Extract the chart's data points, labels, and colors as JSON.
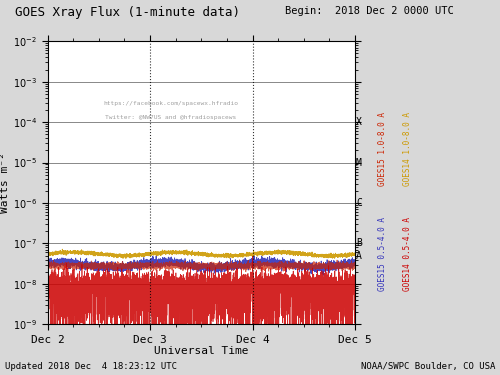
{
  "title_left": "GOES Xray Flux (1-minute data)",
  "title_right": "Begin:  2018 Dec 2 0000 UTC",
  "xlabel": "Universal Time",
  "ylabel": "Watts m⁻²",
  "footer_left": "Updated 2018 Dec  4 18:23:12 UTC",
  "footer_right": "NOAA/SWPC Boulder, CO USA",
  "watermark_line1": "https://facebook.com/spacewx.hfradio",
  "watermark_line2": "Twitter: @NW7US and @hfradiospacews",
  "ylim_low": 1e-09,
  "ylim_high": 0.01,
  "xlim_low": 0,
  "xlim_high": 4320,
  "xtick_positions": [
    0,
    1440,
    2880,
    4320
  ],
  "xtick_labels": [
    "Dec 2",
    "Dec 3",
    "Dec 4",
    "Dec 5"
  ],
  "vline_positions": [
    1440,
    2880
  ],
  "goes15_long_color": "#cc2200",
  "goes14_long_color": "#cc9900",
  "goes15_short_color": "#3333bb",
  "goes14_short_color": "#cc0000",
  "bg_color": "#d8d8d8",
  "plot_bg_color": "#ffffff",
  "grid_color": "#888888"
}
